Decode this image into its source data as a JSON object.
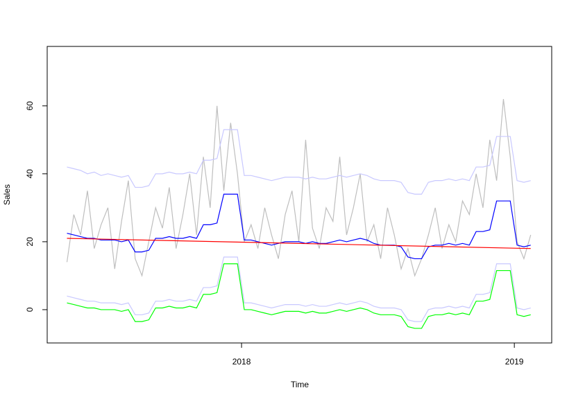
{
  "chart_data": {
    "type": "line",
    "xlabel": "Time",
    "ylabel": "Sales",
    "xlim": [
      2017.2875,
      2019.137
    ],
    "ylim": [
      -9.8,
      77.5
    ],
    "xticks": [
      2018,
      2019
    ],
    "yticks": [
      0,
      20,
      40,
      60
    ],
    "x": [
      2017.36,
      2017.385,
      2017.41,
      2017.435,
      2017.46,
      2017.485,
      2017.51,
      2017.535,
      2017.56,
      2017.585,
      2017.61,
      2017.635,
      2017.66,
      2017.685,
      2017.71,
      2017.735,
      2017.76,
      2017.785,
      2017.81,
      2017.835,
      2017.86,
      2017.885,
      2017.91,
      2017.935,
      2017.96,
      2017.985,
      2018.01,
      2018.035,
      2018.06,
      2018.085,
      2018.11,
      2018.135,
      2018.16,
      2018.185,
      2018.21,
      2018.235,
      2018.26,
      2018.285,
      2018.31,
      2018.335,
      2018.36,
      2018.385,
      2018.41,
      2018.435,
      2018.46,
      2018.485,
      2018.51,
      2018.535,
      2018.56,
      2018.585,
      2018.61,
      2018.635,
      2018.66,
      2018.685,
      2018.71,
      2018.735,
      2018.76,
      2018.785,
      2018.81,
      2018.835,
      2018.86,
      2018.885,
      2018.91,
      2018.935,
      2018.96,
      2018.985,
      2019.01,
      2019.035,
      2019.06
    ],
    "series": [
      {
        "color": "#bebebe",
        "values": [
          14,
          28,
          22,
          35,
          18,
          25,
          30,
          12,
          26,
          38,
          15,
          10,
          20,
          30,
          24,
          36,
          18,
          28,
          40,
          22,
          45,
          30,
          60,
          35,
          55,
          40,
          20,
          25,
          18,
          30,
          22,
          15,
          28,
          35,
          20,
          50,
          24,
          18,
          30,
          26,
          45,
          22,
          30,
          40,
          20,
          25,
          15,
          30,
          22,
          12,
          18,
          10,
          15,
          22,
          30,
          18,
          25,
          20,
          32,
          28,
          40,
          30,
          50,
          38,
          62,
          45,
          20,
          15,
          22
        ]
      },
      {
        "color": "#c8c8ff",
        "values": [
          42,
          41.5,
          41,
          40,
          40.5,
          39.5,
          40,
          39.5,
          39,
          39.5,
          36,
          36,
          36.5,
          40,
          40,
          40.5,
          40,
          40,
          40.5,
          40,
          44,
          44,
          44.5,
          53,
          53,
          53,
          39.5,
          39.5,
          39,
          38.5,
          38,
          38.5,
          39,
          39,
          39,
          38.5,
          39,
          38.5,
          38.5,
          39,
          39.5,
          39,
          39.5,
          40,
          39.5,
          38.5,
          38,
          38,
          38,
          37.5,
          34.5,
          34,
          34,
          37.5,
          38,
          38,
          38.5,
          38,
          38.5,
          38,
          42,
          42,
          42.5,
          51,
          51,
          51,
          38,
          37.5,
          38
        ]
      },
      {
        "color": "#c8c8ff",
        "values": [
          4,
          3.5,
          3,
          2.5,
          2.5,
          2,
          2,
          2,
          1.5,
          2,
          -1.5,
          -1.5,
          -1,
          2.5,
          2.5,
          3,
          2.5,
          2.5,
          3,
          2.5,
          6.5,
          6.5,
          7,
          15.5,
          15.5,
          15.5,
          2,
          2,
          1.5,
          1,
          0.5,
          1,
          1.5,
          1.5,
          1.5,
          1,
          1.5,
          1,
          1,
          1.5,
          2,
          1.5,
          2,
          2.5,
          2,
          1,
          0.5,
          0.5,
          0.5,
          0,
          -3,
          -3.5,
          -3.5,
          0,
          0.5,
          0.5,
          1,
          0.5,
          1,
          0.5,
          4.5,
          4.5,
          5,
          13.5,
          13.5,
          13.5,
          0.5,
          0,
          0.5
        ]
      },
      {
        "color": "#00ff00",
        "values": [
          2,
          1.5,
          1,
          0.5,
          0.5,
          0,
          0,
          0,
          -0.5,
          0,
          -3.5,
          -3.5,
          -3,
          0.5,
          0.5,
          1,
          0.5,
          0.5,
          1,
          0.5,
          4.5,
          4.5,
          5,
          13.5,
          13.5,
          13.5,
          0,
          0,
          -0.5,
          -1,
          -1.5,
          -1,
          -0.5,
          -0.5,
          -0.5,
          -1,
          -0.5,
          -1,
          -1,
          -0.5,
          0,
          -0.5,
          0,
          0.5,
          0,
          -1,
          -1.5,
          -1.5,
          -1.5,
          -2,
          -5,
          -5.5,
          -5.5,
          -2,
          -1.5,
          -1.5,
          -1,
          -1.5,
          -1,
          -1.5,
          2.5,
          2.5,
          3,
          11.5,
          11.5,
          11.5,
          -1.5,
          -2,
          -1.5
        ]
      },
      {
        "color": "#0000ff",
        "values": [
          22.5,
          22,
          21.5,
          21,
          21,
          20.5,
          20.5,
          20.5,
          20,
          20.5,
          17,
          17,
          17.5,
          21,
          21,
          21.5,
          21,
          21,
          21.5,
          21,
          25,
          25,
          25.5,
          34,
          34,
          34,
          20.5,
          20.5,
          20,
          19.5,
          19,
          19.5,
          20,
          20,
          20,
          19.5,
          20,
          19.5,
          19.5,
          20,
          20.5,
          20,
          20.5,
          21,
          20.5,
          19.5,
          19,
          19,
          19,
          18.5,
          15.5,
          15,
          15,
          18.5,
          19,
          19,
          19.5,
          19,
          19.5,
          19,
          23,
          23,
          23.5,
          32,
          32,
          32,
          19,
          18.5,
          19
        ]
      },
      {
        "color": "#ff0000",
        "x": [
          2017.36,
          2019.06
        ],
        "values": [
          21,
          18
        ]
      }
    ]
  }
}
